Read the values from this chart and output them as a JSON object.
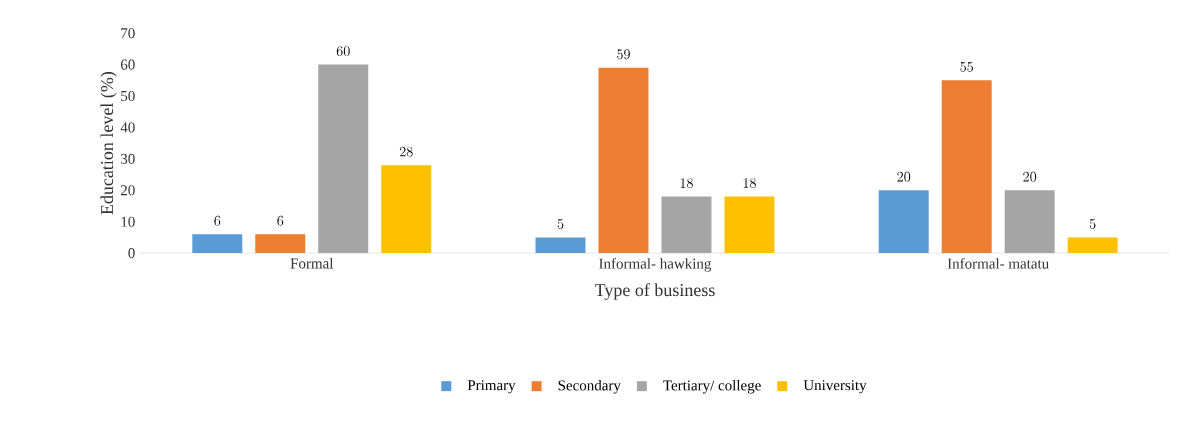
{
  "chart_data": {
    "type": "bar",
    "xlabel": "Type of business",
    "ylabel": "Education level (%)",
    "categories": [
      "Formal",
      "Informal- hawking",
      "Informal- matatu"
    ],
    "series": [
      {
        "name": "Primary",
        "color": "#5b9bd5",
        "values": [
          6,
          5,
          20
        ]
      },
      {
        "name": "Secondary",
        "color": "#ed7d31",
        "values": [
          6,
          59,
          55
        ]
      },
      {
        "name": "Tertiary/ college",
        "color": "#a5a5a5",
        "values": [
          60,
          18,
          20
        ]
      },
      {
        "name": "University",
        "color": "#ffc000",
        "values": [
          28,
          18,
          5
        ]
      }
    ],
    "ylim": [
      0,
      70
    ],
    "yticks": [
      0,
      10,
      20,
      30,
      40,
      50,
      60,
      70
    ],
    "data_labels": true,
    "legend": "bottom",
    "grid": false
  }
}
